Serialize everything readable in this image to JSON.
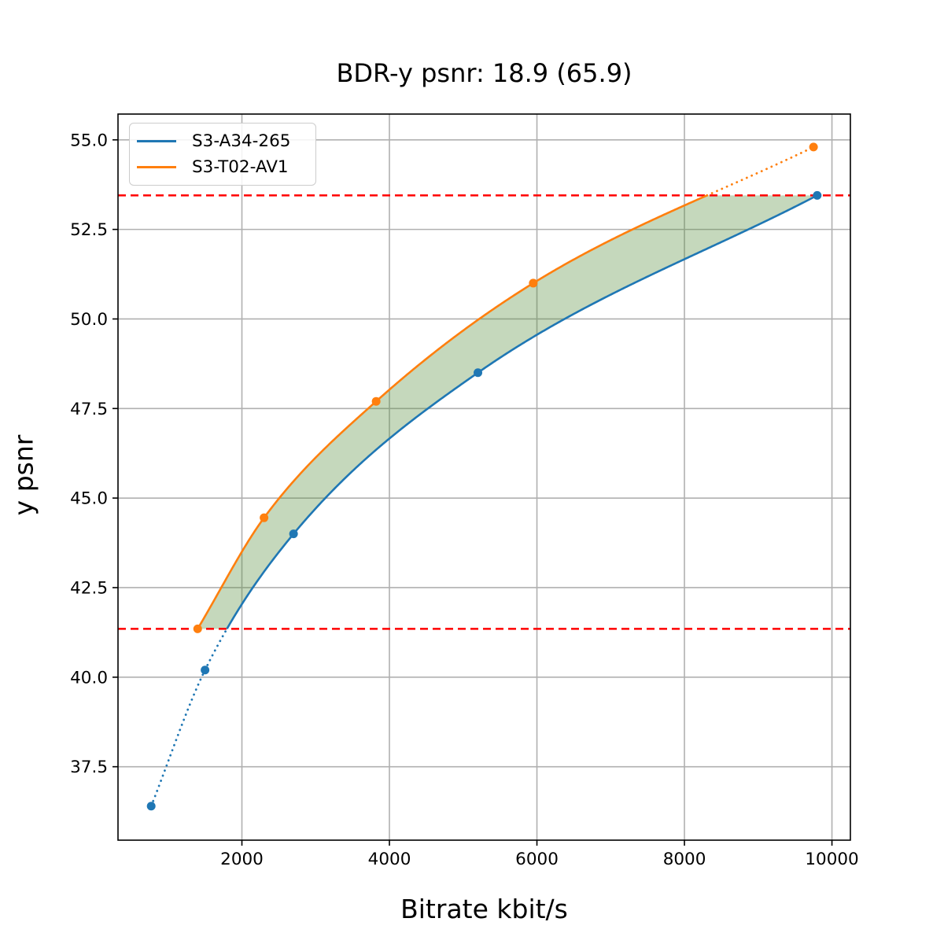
{
  "chart_data": {
    "type": "line",
    "title": "BDR-y psnr: 18.9 (65.9)",
    "xlabel": "Bitrate kbit/s",
    "ylabel": "y psnr",
    "xlim": [
      320,
      10250
    ],
    "ylim": [
      35.45,
      55.72
    ],
    "xtick_values": [
      2000,
      4000,
      6000,
      8000,
      10000
    ],
    "xtick_labels": [
      "2000",
      "4000",
      "6000",
      "8000",
      "10000"
    ],
    "ytick_values": [
      37.5,
      40.0,
      42.5,
      45.0,
      47.5,
      50.0,
      52.5,
      55.0
    ],
    "ytick_labels": [
      "37.5",
      "40.0",
      "42.5",
      "45.0",
      "47.5",
      "50.0",
      "52.5",
      "55.0"
    ],
    "grid": true,
    "legend_position": "upper-left",
    "series": [
      {
        "name": "S3-A34-265",
        "color": "#1f77b4",
        "points": [
          [
            770,
            36.4
          ],
          [
            1500,
            40.2
          ],
          [
            2700,
            44.0
          ],
          [
            5200,
            48.5
          ],
          [
            9800,
            53.45
          ]
        ]
      },
      {
        "name": "S3-T02-AV1",
        "color": "#ff7f0e",
        "points": [
          [
            1400,
            41.35
          ],
          [
            2300,
            44.45
          ],
          [
            3820,
            47.7
          ],
          [
            5950,
            51.0
          ],
          [
            9750,
            54.8
          ]
        ]
      }
    ],
    "overlap_band": {
      "y_min": 41.35,
      "y_max": 53.45,
      "hline_color": "#ff0000",
      "hline_style": "dashed",
      "fill_color": "#599040",
      "fill_opacity": 0.35
    },
    "style_colors": {
      "grid": "#b0b0b0",
      "spine": "#000000",
      "background": "#ffffff"
    }
  }
}
